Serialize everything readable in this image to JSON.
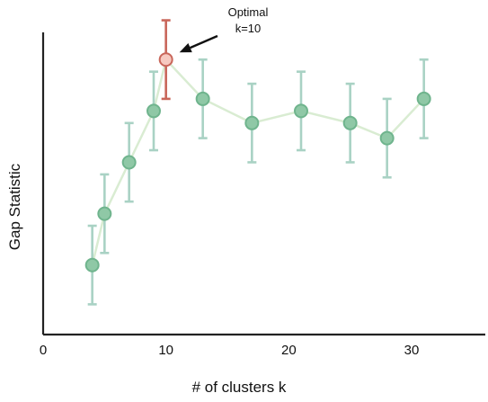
{
  "chart_data": {
    "type": "line",
    "title": "",
    "xlabel": "# of clusters k",
    "ylabel": "Gap Statistic",
    "xlim": [
      0,
      36
    ],
    "ylim": [
      0,
      1
    ],
    "xticks": [
      0,
      10,
      20,
      30
    ],
    "yticks": [],
    "grid": false,
    "legend": "none",
    "series": [
      {
        "x": [
          4,
          5,
          7,
          9,
          10,
          13,
          17,
          21,
          25,
          28,
          31
        ],
        "y": [
          0.23,
          0.4,
          0.57,
          0.74,
          0.91,
          0.78,
          0.7,
          0.74,
          0.7,
          0.65,
          0.78
        ],
        "yerr": [
          0.13,
          0.13,
          0.13,
          0.13,
          0.13,
          0.13,
          0.13,
          0.13,
          0.13,
          0.13,
          0.13
        ]
      }
    ],
    "highlight": {
      "x": 10,
      "label_lines": [
        "Optimal",
        "k=10"
      ]
    },
    "colors": {
      "point_fill": "#8fc8a6",
      "point_stroke": "#6fb48d",
      "errorbar": "#a9d2c4",
      "line": "#d9ecd2",
      "highlight_fill": "#f6c9c0",
      "highlight_stroke": "#c9665a",
      "highlight_errorbar": "#c9665a",
      "axis": "#222222",
      "arrow": "#111111"
    }
  }
}
